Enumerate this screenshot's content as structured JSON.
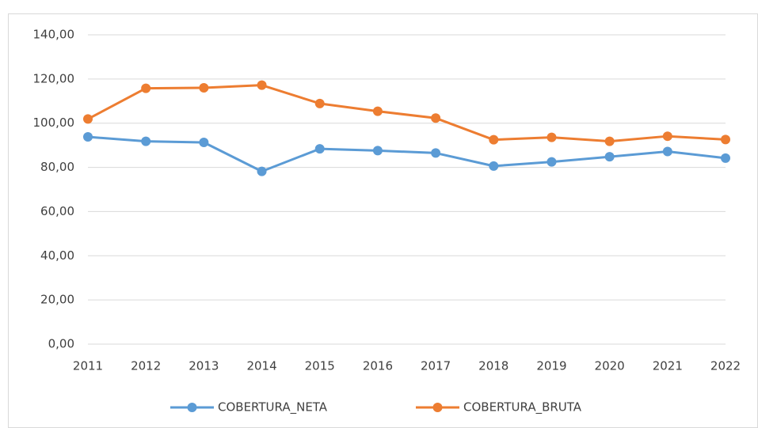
{
  "chart_data": {
    "type": "line",
    "categories": [
      "2011",
      "2012",
      "2013",
      "2014",
      "2015",
      "2016",
      "2017",
      "2018",
      "2019",
      "2020",
      "2021",
      "2022"
    ],
    "series": [
      {
        "name": "COBERTURA_NETA",
        "color": "#5b9bd5",
        "values": [
          93.8,
          91.8,
          91.3,
          78.2,
          88.4,
          87.6,
          86.5,
          80.6,
          82.5,
          84.8,
          87.2,
          84.2
        ]
      },
      {
        "name": "COBERTURA_BRUTA",
        "color": "#ed7d31",
        "values": [
          101.9,
          115.8,
          116.0,
          117.2,
          108.9,
          105.4,
          102.3,
          92.5,
          93.6,
          91.8,
          94.1,
          92.6
        ]
      }
    ],
    "ylim": [
      0,
      140
    ],
    "yticks": [
      {
        "value": 0,
        "label": "0,00"
      },
      {
        "value": 20,
        "label": "20,00"
      },
      {
        "value": 40,
        "label": "40,00"
      },
      {
        "value": 60,
        "label": "60,00"
      },
      {
        "value": 80,
        "label": "80,00"
      },
      {
        "value": 100,
        "label": "100,00"
      },
      {
        "value": 120,
        "label": "120,00"
      },
      {
        "value": 140,
        "label": "140,00"
      }
    ],
    "grid": true,
    "legend": "bottom"
  }
}
